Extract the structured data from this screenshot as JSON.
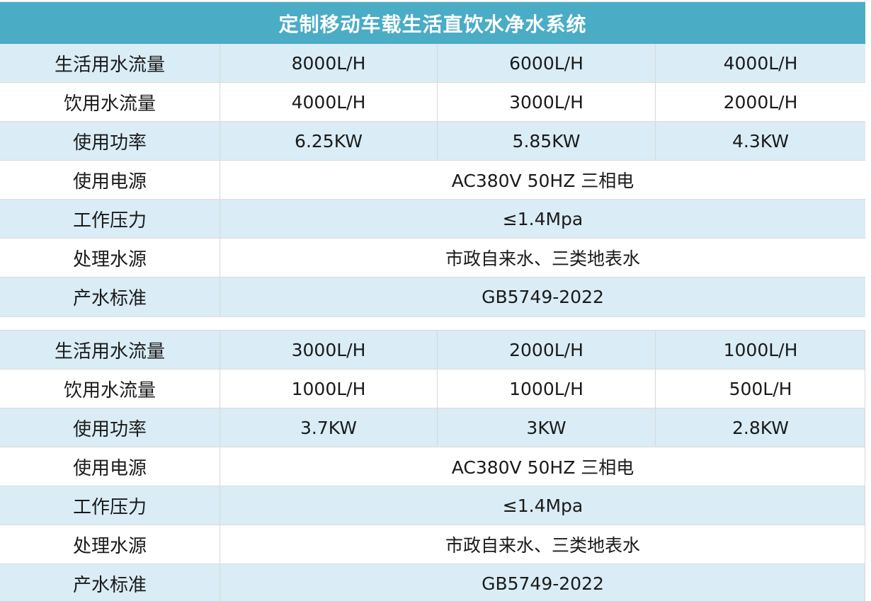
{
  "page": {
    "title": "定制移动车载生活直饮水净水系统",
    "colors": {
      "header_bg": "#4aacc5",
      "header_text": "#ffffff",
      "row_alt_bg": "#daecf5",
      "row_bg": "#ffffff",
      "divider": "#d8d8d8",
      "body_text": "#1a1a1a"
    }
  },
  "tables": [
    {
      "rows": [
        {
          "label": "生活用水流量",
          "values": [
            "8000L/H",
            "6000L/H",
            "4000L/H"
          ]
        },
        {
          "label": "饮用水流量",
          "values": [
            "4000L/H",
            "3000L/H",
            "2000L/H"
          ]
        },
        {
          "label": "使用功率",
          "values": [
            "6.25KW",
            "5.85KW",
            "4.3KW"
          ]
        },
        {
          "label": "使用电源",
          "merged": "AC380V 50HZ 三相电"
        },
        {
          "label": "工作压力",
          "merged": "≤1.4Mpa"
        },
        {
          "label": "处理水源",
          "merged": "市政自来水、三类地表水"
        },
        {
          "label": "产水标准",
          "merged": "GB5749-2022"
        }
      ]
    },
    {
      "rows": [
        {
          "label": "生活用水流量",
          "values": [
            "3000L/H",
            "2000L/H",
            "1000L/H"
          ]
        },
        {
          "label": "饮用水流量",
          "values": [
            "1000L/H",
            "1000L/H",
            "500L/H"
          ]
        },
        {
          "label": "使用功率",
          "values": [
            "3.7KW",
            "3KW",
            "2.8KW"
          ]
        },
        {
          "label": "使用电源",
          "merged": "AC380V 50HZ 三相电"
        },
        {
          "label": "工作压力",
          "merged": "≤1.4Mpa"
        },
        {
          "label": "处理水源",
          "merged": "市政自来水、三类地表水"
        },
        {
          "label": "产水标准",
          "merged": "GB5749-2022"
        }
      ]
    }
  ]
}
